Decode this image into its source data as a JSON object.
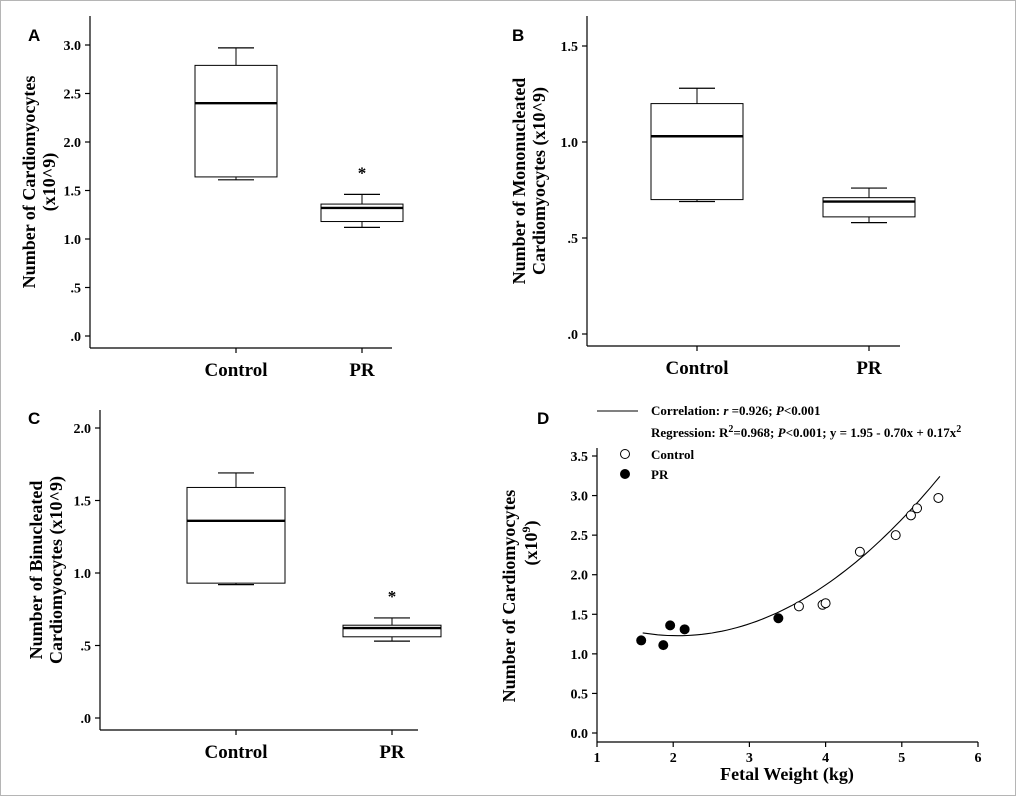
{
  "chart_data": [
    {
      "panel": "A",
      "type": "box",
      "ylabel_lines": [
        "Number of Cardiomyocytes",
        "(x10^9)"
      ],
      "categories": [
        "Control",
        "PR"
      ],
      "ylim": [
        0,
        3.0
      ],
      "yticks": [
        ".0",
        ".5",
        "1.0",
        "1.5",
        "2.0",
        "2.5",
        "3.0"
      ],
      "ytick_values": [
        0,
        0.5,
        1.0,
        1.5,
        2.0,
        2.5,
        3.0
      ],
      "boxes": [
        {
          "category": "Control",
          "min": 1.61,
          "q1": 1.64,
          "median": 2.4,
          "q3": 2.79,
          "max": 2.97,
          "star": ""
        },
        {
          "category": "PR",
          "min": 1.12,
          "q1": 1.18,
          "median": 1.32,
          "q3": 1.36,
          "max": 1.46,
          "star": "*"
        }
      ]
    },
    {
      "panel": "B",
      "type": "box",
      "ylabel_lines": [
        "Number of Mononucleated",
        "Cardiomyocytes (x10^9)"
      ],
      "categories": [
        "Control",
        "PR"
      ],
      "ylim": [
        0,
        1.5
      ],
      "yticks": [
        ".0",
        ".5",
        "1.0",
        "1.5"
      ],
      "ytick_values": [
        0,
        0.5,
        1.0,
        1.5
      ],
      "boxes": [
        {
          "category": "Control",
          "min": 0.69,
          "q1": 0.7,
          "median": 1.03,
          "q3": 1.2,
          "max": 1.28,
          "star": ""
        },
        {
          "category": "PR",
          "min": 0.58,
          "q1": 0.61,
          "median": 0.69,
          "q3": 0.71,
          "max": 0.76,
          "star": ""
        }
      ]
    },
    {
      "panel": "C",
      "type": "box",
      "ylabel_lines": [
        "Number of Binucleated",
        "Cardiomyocytes (x10^9)"
      ],
      "categories": [
        "Control",
        "PR"
      ],
      "ylim": [
        0,
        2.0
      ],
      "yticks": [
        ".0",
        ".5",
        "1.0",
        "1.5",
        "2.0"
      ],
      "ytick_values": [
        0,
        0.5,
        1.0,
        1.5,
        2.0
      ],
      "boxes": [
        {
          "category": "Control",
          "min": 0.92,
          "q1": 0.93,
          "median": 1.36,
          "q3": 1.59,
          "max": 1.69,
          "star": ""
        },
        {
          "category": "PR",
          "min": 0.53,
          "q1": 0.56,
          "median": 0.62,
          "q3": 0.64,
          "max": 0.69,
          "star": "*"
        }
      ]
    },
    {
      "panel": "D",
      "type": "scatter",
      "xlabel": "Fetal Weight (kg)",
      "ylabel_main": "Number of Cardiomyocytes",
      "ylabel_sub_prefix": "(x10",
      "ylabel_sub_sup": "9",
      "ylabel_sub_suffix": ")",
      "xlim": [
        1,
        6
      ],
      "ylim": [
        0,
        3.5
      ],
      "xticks": [
        "1",
        "2",
        "3",
        "4",
        "5",
        "6"
      ],
      "xtick_values": [
        1,
        2,
        3,
        4,
        5,
        6
      ],
      "yticks": [
        "0.0",
        "0.5",
        "1.0",
        "1.5",
        "2.0",
        "2.5",
        "3.0",
        "3.5"
      ],
      "ytick_values": [
        0,
        0.5,
        1.0,
        1.5,
        2.0,
        2.5,
        3.0,
        3.5
      ],
      "annotation_correlation": {
        "prefix": "Correlation: ",
        "r_symbol": "r",
        "r_text": " =0.926; ",
        "p_symbol": "P",
        "p_text": "<0.001"
      },
      "annotation_regression": {
        "prefix": "Regression: R",
        "sup": "2",
        "mid": "=0.968; ",
        "p_symbol": "P",
        "tail": "<0.001; y = 1.95 - 0.70x + 0.17x",
        "tail_sup": "2"
      },
      "series": [
        {
          "name": "Control",
          "marker": "open-circle",
          "points": [
            [
              3.65,
              1.6
            ],
            [
              3.96,
              1.62
            ],
            [
              4.0,
              1.64
            ],
            [
              4.45,
              2.29
            ],
            [
              4.92,
              2.5
            ],
            [
              5.12,
              2.75
            ],
            [
              5.2,
              2.84
            ],
            [
              5.48,
              2.97
            ]
          ]
        },
        {
          "name": "PR",
          "marker": "filled-circle",
          "points": [
            [
              1.58,
              1.17
            ],
            [
              1.87,
              1.11
            ],
            [
              1.96,
              1.36
            ],
            [
              2.15,
              1.31
            ],
            [
              3.38,
              1.45
            ]
          ]
        }
      ],
      "fit": {
        "intercept": 1.95,
        "linear": -0.7,
        "quadratic": 0.17,
        "x_range": [
          1.6,
          5.5
        ]
      }
    }
  ]
}
